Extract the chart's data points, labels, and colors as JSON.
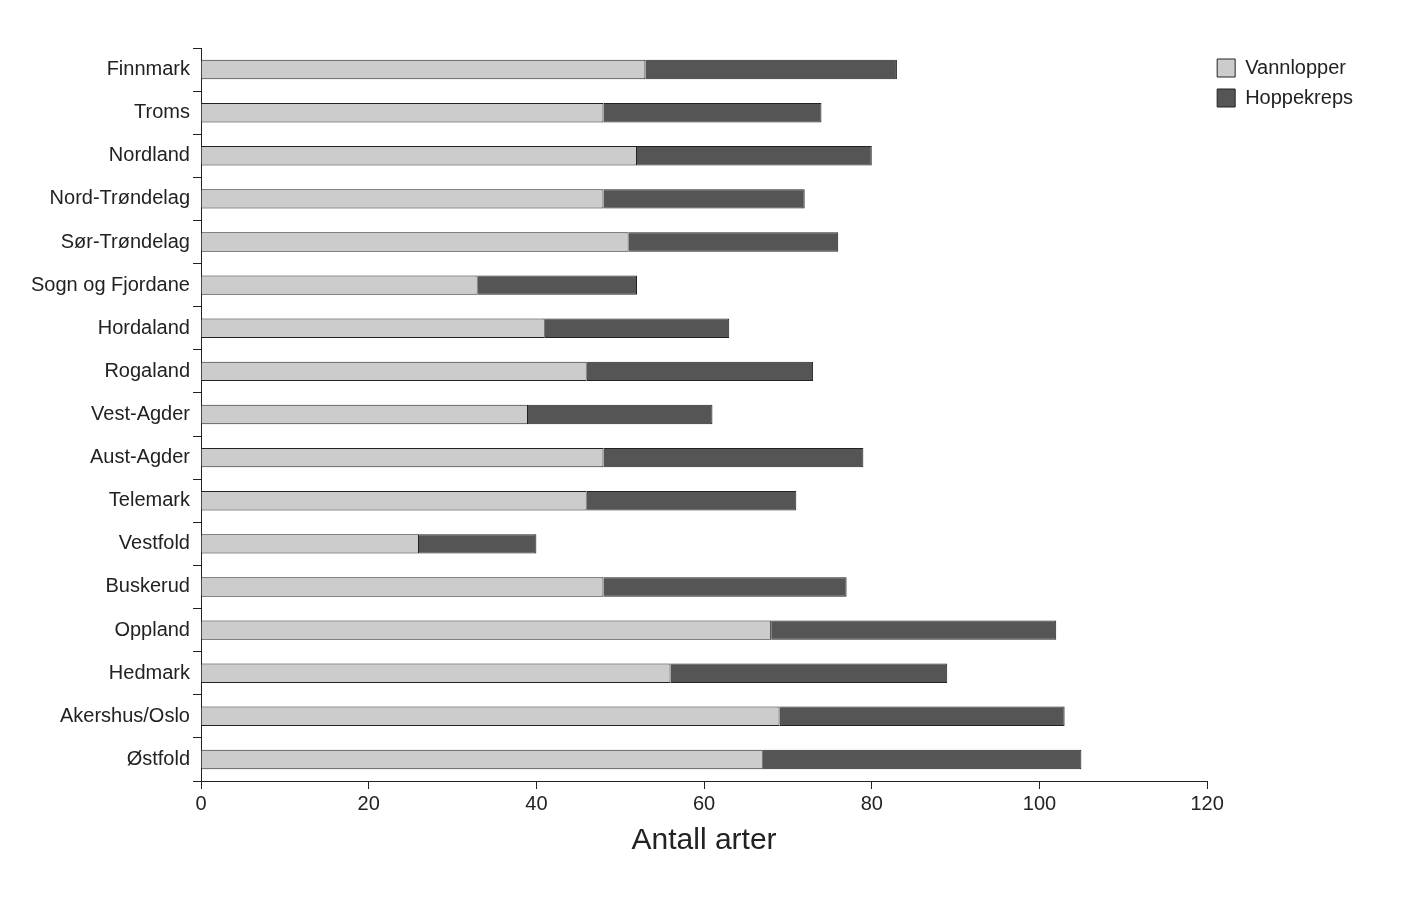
{
  "chart_data": {
    "type": "bar",
    "orientation": "horizontal",
    "stacked": true,
    "xlabel": "Antall arter",
    "categories": [
      "Finnmark",
      "Troms",
      "Nordland",
      "Nord-Trøndelag",
      "Sør-Trøndelag",
      "Sogn og Fjordane",
      "Hordaland",
      "Rogaland",
      "Vest-Agder",
      "Aust-Agder",
      "Telemark",
      "Vestfold",
      "Buskerud",
      "Oppland",
      "Hedmark",
      "Akershus/Oslo",
      "Østfold"
    ],
    "series": [
      {
        "name": "Vannlopper",
        "color": "#cccccc",
        "values": [
          53,
          48,
          52,
          48,
          51,
          33,
          41,
          46,
          39,
          48,
          46,
          26,
          48,
          68,
          56,
          69,
          67
        ]
      },
      {
        "name": "Hoppekreps",
        "color": "#555555",
        "values": [
          30,
          26,
          28,
          24,
          25,
          19,
          22,
          27,
          22,
          31,
          25,
          14,
          29,
          34,
          33,
          34,
          38
        ]
      }
    ],
    "xlim": [
      0,
      120
    ],
    "xticks": [
      0,
      20,
      40,
      60,
      80,
      100,
      120
    ],
    "grid": false,
    "legend": "top right"
  }
}
